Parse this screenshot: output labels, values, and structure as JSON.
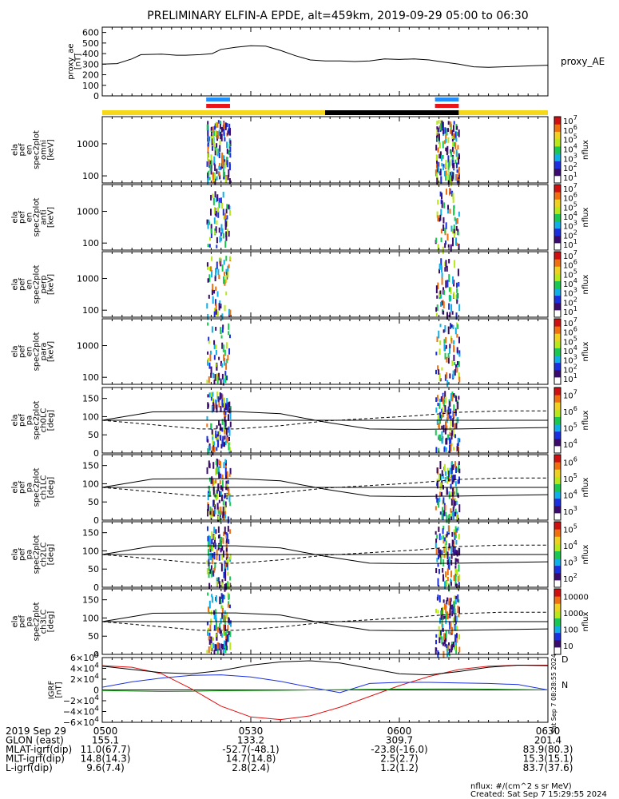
{
  "title": "PRELIMINARY ELFIN-A EPDE, alt=459km, 2019-09-29 05:00 to 06:30",
  "footer": {
    "units": "nflux: #/(cm^2 s sr MeV)",
    "created": "Created: Sat Sep  7 15:29:55 2024",
    "side_stamp": "Sat Sep  7 08:28:55 2024"
  },
  "colors": {
    "bar_yellow": "#f6d81a",
    "bar_black": "#000000",
    "marker_blue": "#1f8fff",
    "marker_red": "#e8141a",
    "igrf_red": "#e01010",
    "igrf_blue": "#1a2fe0",
    "igrf_green": "#18a818"
  },
  "ephemeris": {
    "rows": [
      {
        "label": "2019 Sep 29",
        "values": [
          "0500",
          "0530",
          "0600",
          "0630"
        ]
      },
      {
        "label": "GLON (east)",
        "values": [
          "155.1",
          "133.2",
          "309.7",
          "201.4"
        ]
      },
      {
        "label": "MLAT-igrf(dip)",
        "values": [
          "11.0(67.7)",
          "-52.7(-48.1)",
          "-23.8(-16.0)",
          "83.9(80.3)"
        ]
      },
      {
        "label": "MLT-igrf(dip)",
        "values": [
          "14.8(14.3)",
          "14.7(14.8)",
          "2.5(2.7)",
          "15.3(15.1)"
        ]
      },
      {
        "label": "L-igrf(dip)",
        "values": [
          "9.6(7.4)",
          "2.8(2.4)",
          "1.2(1.2)",
          "83.7(37.6)"
        ]
      }
    ]
  },
  "chart_data": [
    {
      "type": "line",
      "panel": "proxy_ae",
      "ylabel_lines": [
        "proxy_ae",
        "[nT]"
      ],
      "legend": "proxy_AE",
      "ylim": [
        0,
        650
      ],
      "yticks": [
        "0",
        "100",
        "200",
        "300",
        "400",
        "500",
        "600"
      ],
      "xlim_hours": [
        5.0,
        6.5
      ],
      "x_hours": [
        5.0,
        5.05,
        5.1,
        5.13,
        5.2,
        5.25,
        5.28,
        5.33,
        5.37,
        5.4,
        5.45,
        5.5,
        5.55,
        5.6,
        5.65,
        5.7,
        5.75,
        5.8,
        5.85,
        5.9,
        5.95,
        6.0,
        6.05,
        6.1,
        6.15,
        6.2,
        6.25,
        6.3,
        6.35,
        6.4,
        6.45,
        6.5
      ],
      "values": [
        300,
        305,
        350,
        390,
        395,
        385,
        385,
        390,
        400,
        440,
        460,
        475,
        470,
        430,
        380,
        340,
        330,
        330,
        325,
        330,
        350,
        345,
        350,
        340,
        320,
        300,
        275,
        270,
        275,
        280,
        285,
        290
      ]
    },
    {
      "type": "heatmap",
      "panel": "spectrograms",
      "xlim_hours": [
        5.0,
        6.5
      ],
      "yscale": "log",
      "ylim_keV": [
        60,
        7000
      ],
      "yticks": [
        "100",
        "1000"
      ],
      "colorbar": {
        "label": "nflux",
        "scale": "log",
        "ticks": [
          "10^1",
          "10^2",
          "10^3",
          "10^4",
          "10^5",
          "10^6",
          "10^7"
        ]
      },
      "panels": [
        {
          "ylabel_lines": [
            "ela",
            "pef",
            "en",
            "spec2plot",
            "omni",
            "[keV]"
          ]
        },
        {
          "ylabel_lines": [
            "ela",
            "pef",
            "en",
            "spec2plot",
            "anti",
            "[keV]"
          ]
        },
        {
          "ylabel_lines": [
            "ela",
            "pef",
            "en",
            "spec2plot",
            "perp",
            "[keV]"
          ]
        },
        {
          "ylabel_lines": [
            "ela",
            "pef",
            "en",
            "spec2plot",
            "para",
            "[keV]"
          ]
        }
      ],
      "science_zones_hours": [
        [
          5.35,
          5.43
        ],
        [
          6.12,
          6.2
        ]
      ]
    },
    {
      "type": "heatmap",
      "panel": "pitch_angle",
      "xlim_hours": [
        5.0,
        6.5
      ],
      "ylim_deg": [
        0,
        180
      ],
      "yticks": [
        "0",
        "50",
        "100",
        "150"
      ],
      "panels": [
        {
          "ylabel_lines": [
            "ela",
            "pef",
            "pa",
            "spec2plot",
            "ch0LC",
            "[deg]"
          ],
          "colorbar_ticks": [
            "10^4",
            "10^5",
            "10^6",
            "10^7"
          ]
        },
        {
          "ylabel_lines": [
            "ela",
            "pef",
            "pa",
            "spec2plot",
            "ch1LC",
            "[deg]"
          ],
          "colorbar_ticks": [
            "10^3",
            "10^4",
            "10^5",
            "10^6"
          ]
        },
        {
          "ylabel_lines": [
            "ela",
            "pef",
            "pa",
            "spec2plot",
            "ch2LC",
            "[deg]"
          ],
          "colorbar_ticks": [
            "10^2",
            "10^3",
            "10^4",
            "10^5"
          ]
        },
        {
          "ylabel_lines": [
            "ela",
            "pef",
            "pa",
            "spec2plot",
            "ch3LC",
            "[deg]"
          ],
          "colorbar_ticks": [
            "10",
            "100",
            "1000",
            "10000"
          ]
        }
      ],
      "loss_cone_deg": {
        "x_hours": [
          5.0,
          5.17,
          5.33,
          5.45,
          5.6,
          5.75,
          5.9,
          6.05,
          6.2,
          6.35,
          6.5
        ],
        "solid": [
          90,
          113,
          114,
          114,
          108,
          85,
          66,
          65,
          66,
          68,
          70
        ],
        "dashed": [
          90,
          78,
          66,
          66,
          75,
          88,
          95,
          102,
          112,
          116,
          116
        ]
      }
    },
    {
      "type": "line",
      "panel": "igrf",
      "ylabel_lines": [
        "IGRF",
        "[nT]"
      ],
      "ylim": [
        -60000,
        60000
      ],
      "yticks": [
        "6×10^4",
        "4×10^4",
        "2×10^4",
        "0",
        "−2×10^4",
        "−4×10^4",
        "−6×10^4"
      ],
      "x_hours": [
        5.0,
        5.1,
        5.2,
        5.3,
        5.4,
        5.5,
        5.6,
        5.7,
        5.8,
        5.9,
        6.0,
        6.1,
        6.2,
        6.3,
        6.4,
        6.5
      ],
      "series": [
        {
          "name": "D",
          "values": [
            45000,
            42000,
            30000,
            2000,
            -30000,
            -50000,
            -55000,
            -48000,
            -32000,
            -12000,
            8000,
            25000,
            38000,
            44000,
            46000,
            46000
          ]
        },
        {
          "name": "N",
          "values": [
            5000,
            15000,
            22000,
            27000,
            28000,
            24000,
            16000,
            5000,
            -5000,
            12000,
            14000,
            14000,
            13000,
            12000,
            10000,
            0
          ]
        },
        {
          "values": [
            -1000,
            -2000,
            -3000,
            -2500,
            -1500,
            -1000,
            -800,
            0,
            500,
            1000,
            1500,
            1800,
            2000,
            1500,
            800,
            0
          ]
        },
        {
          "values": [
            44000,
            38000,
            32000,
            30000,
            36000,
            46000,
            52000,
            54000,
            50000,
            40000,
            30000,
            28000,
            34000,
            42000,
            46000,
            45000
          ]
        }
      ]
    }
  ]
}
